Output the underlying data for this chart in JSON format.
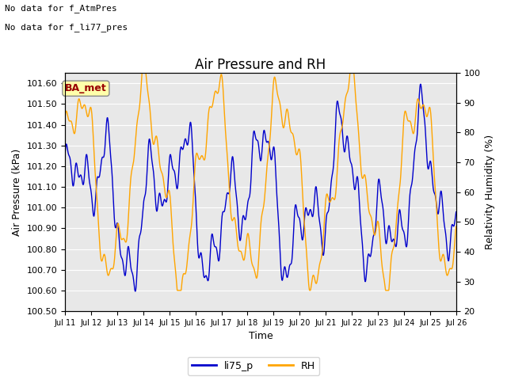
{
  "title": "Air Pressure and RH",
  "xlabel": "Time",
  "ylabel_left": "Air Pressure (kPa)",
  "ylabel_right": "Relativity Humidity (%)",
  "ylim_left": [
    100.5,
    101.65
  ],
  "ylim_right": [
    20,
    100
  ],
  "yticks_left": [
    100.5,
    100.6,
    100.7,
    100.8,
    100.9,
    101.0,
    101.1,
    101.2,
    101.3,
    101.4,
    101.5,
    101.6
  ],
  "yticks_right": [
    20,
    30,
    40,
    50,
    60,
    70,
    80,
    90,
    100
  ],
  "xtick_labels": [
    "Jul 11",
    "Jul 12",
    "Jul 13",
    "Jul 14",
    "Jul 15",
    "Jul 16",
    "Jul 17",
    "Jul 18",
    "Jul 19",
    "Jul 20",
    "Jul 21",
    "Jul 22",
    "Jul 23",
    "Jul 24",
    "Jul 25",
    "Jul 26"
  ],
  "color_blue": "#0000CC",
  "color_orange": "#FFA500",
  "annotation_line1": "No data for f_AtmPres",
  "annotation_line2": "No data for f_li77_pres",
  "ba_met_label": "BA_met",
  "ba_met_color": "#990000",
  "ba_met_bg": "#FFFFAA",
  "ba_met_edge": "#888888",
  "legend_labels": [
    "li75_p",
    "RH"
  ],
  "background_color": "#E8E8E8",
  "figsize": [
    6.4,
    4.8
  ],
  "dpi": 100
}
